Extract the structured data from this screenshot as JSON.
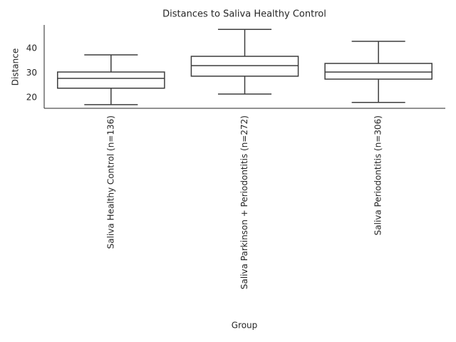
{
  "chart_data": {
    "type": "box",
    "title": "Distances to Saliva Healthy Control",
    "xlabel": "Group",
    "ylabel": "Distance",
    "categories": [
      "Saliva Healthy Control (n=136)",
      "Saliva Parkinson + Periodontitis (n=272)",
      "Saliva Periodontitis (n=306)"
    ],
    "stats": [
      {
        "min": 17.1,
        "q1": 23.8,
        "median": 27.8,
        "q3": 30.4,
        "max": 37.4
      },
      {
        "min": 21.4,
        "q1": 28.7,
        "median": 33.0,
        "q3": 36.8,
        "max": 47.8
      },
      {
        "min": 18.0,
        "q1": 27.5,
        "median": 30.4,
        "q3": 33.9,
        "max": 42.9
      }
    ],
    "color": "#3d3d3d",
    "fill": "#ffffff",
    "ylim": [
      15.6,
      49.6
    ],
    "yticks": [
      20,
      30,
      40
    ],
    "grid": false
  }
}
